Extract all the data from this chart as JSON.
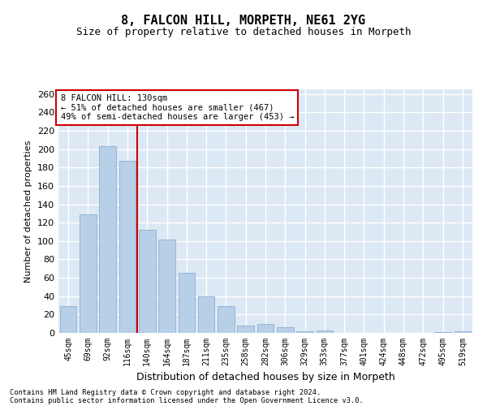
{
  "title1": "8, FALCON HILL, MORPETH, NE61 2YG",
  "title2": "Size of property relative to detached houses in Morpeth",
  "xlabel": "Distribution of detached houses by size in Morpeth",
  "ylabel": "Number of detached properties",
  "categories": [
    "45sqm",
    "69sqm",
    "92sqm",
    "116sqm",
    "140sqm",
    "164sqm",
    "187sqm",
    "211sqm",
    "235sqm",
    "258sqm",
    "282sqm",
    "306sqm",
    "329sqm",
    "353sqm",
    "377sqm",
    "401sqm",
    "424sqm",
    "448sqm",
    "472sqm",
    "495sqm",
    "519sqm"
  ],
  "values": [
    29,
    129,
    203,
    187,
    112,
    102,
    65,
    40,
    29,
    8,
    10,
    6,
    2,
    3,
    0,
    0,
    0,
    0,
    0,
    1,
    2
  ],
  "bar_color": "#b8cfe8",
  "bar_edge_color": "#8ab0d0",
  "figure_bg": "#ffffff",
  "axes_bg": "#dde8f5",
  "grid_color": "#ffffff",
  "vline_x": 3.5,
  "vline_color": "#cc0000",
  "annotation_text": "8 FALCON HILL: 130sqm\n← 51% of detached houses are smaller (467)\n49% of semi-detached houses are larger (453) →",
  "annotation_box_color": "#ffffff",
  "annotation_box_edge": "#cc0000",
  "footer1": "Contains HM Land Registry data © Crown copyright and database right 2024.",
  "footer2": "Contains public sector information licensed under the Open Government Licence v3.0.",
  "ylim": [
    0,
    265
  ],
  "yticks": [
    0,
    20,
    40,
    60,
    80,
    100,
    120,
    140,
    160,
    180,
    200,
    220,
    240,
    260
  ],
  "title1_fontsize": 11,
  "title2_fontsize": 9,
  "xlabel_fontsize": 9,
  "ylabel_fontsize": 8,
  "tick_fontsize": 8,
  "xtick_fontsize": 7
}
